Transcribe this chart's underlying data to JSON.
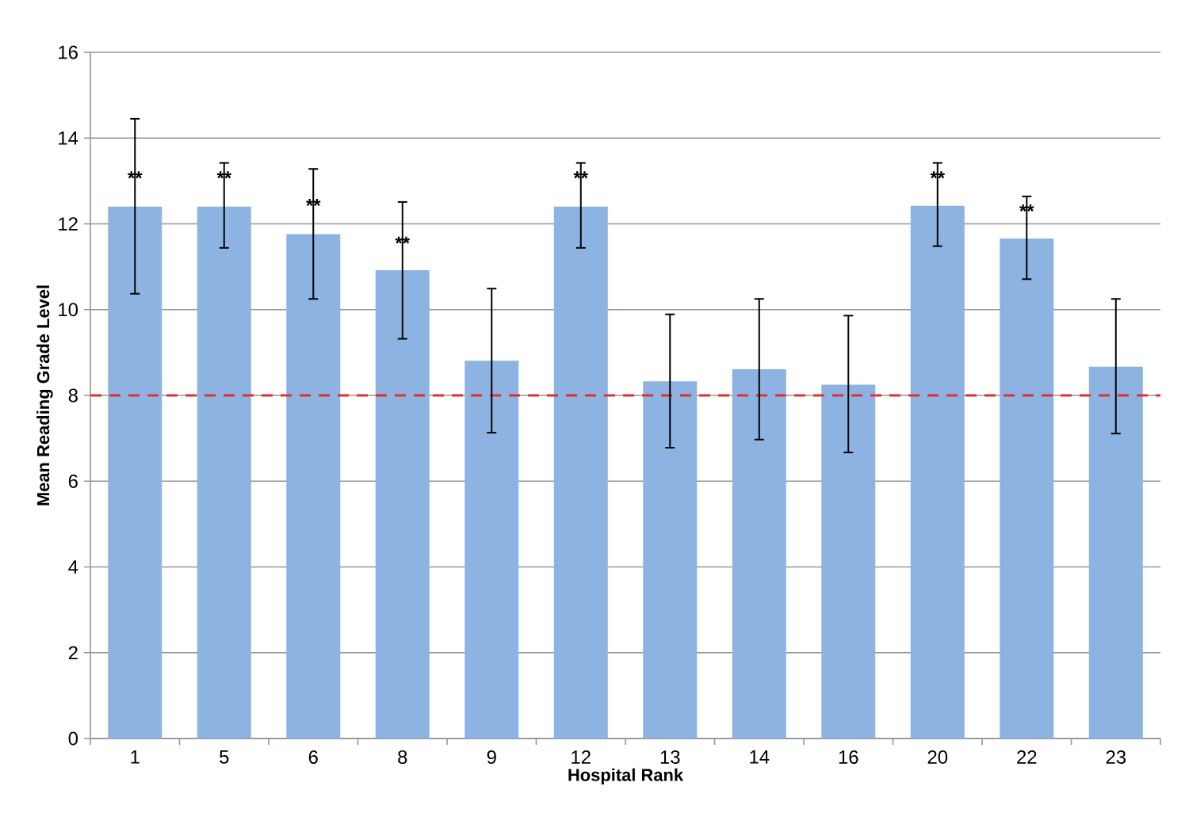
{
  "chart_data": {
    "type": "bar",
    "xlabel": "Hospital Rank",
    "ylabel": "Mean Reading Grade Level",
    "categories": [
      "1",
      "5",
      "6",
      "8",
      "9",
      "12",
      "13",
      "14",
      "16",
      "20",
      "22",
      "23"
    ],
    "values": [
      12.4,
      12.4,
      11.76,
      10.92,
      8.81,
      12.4,
      8.33,
      8.61,
      8.25,
      12.42,
      11.66,
      8.67
    ],
    "errors": [
      [
        10.37,
        14.45
      ],
      [
        11.44,
        13.42
      ],
      [
        10.25,
        13.28
      ],
      [
        9.32,
        12.51
      ],
      [
        7.13,
        10.49
      ],
      [
        11.44,
        13.42
      ],
      [
        6.78,
        9.89
      ],
      [
        6.97,
        10.25
      ],
      [
        6.67,
        9.86
      ],
      [
        11.48,
        13.42
      ],
      [
        10.71,
        12.64
      ],
      [
        7.11,
        10.25
      ]
    ],
    "color": "#8db3e2",
    "ylim": [
      0,
      16
    ],
    "yticks": [
      0,
      2,
      4,
      6,
      8,
      10,
      12,
      14,
      16
    ],
    "grid": "y",
    "ref_lines": [
      {
        "axis": "y",
        "value": 8,
        "color": "#e03030",
        "line_style": "dashed"
      }
    ],
    "annotations": [
      {
        "text": "**",
        "x": "1",
        "y": 13.07
      },
      {
        "text": "**",
        "x": "5",
        "y": 13.07
      },
      {
        "text": "**",
        "x": "6",
        "y": 12.43
      },
      {
        "text": "**",
        "x": "8",
        "y": 11.55
      },
      {
        "text": "**",
        "x": "12",
        "y": 13.07
      },
      {
        "text": "**",
        "x": "20",
        "y": 13.07
      },
      {
        "text": "**",
        "x": "22",
        "y": 12.3
      }
    ]
  }
}
